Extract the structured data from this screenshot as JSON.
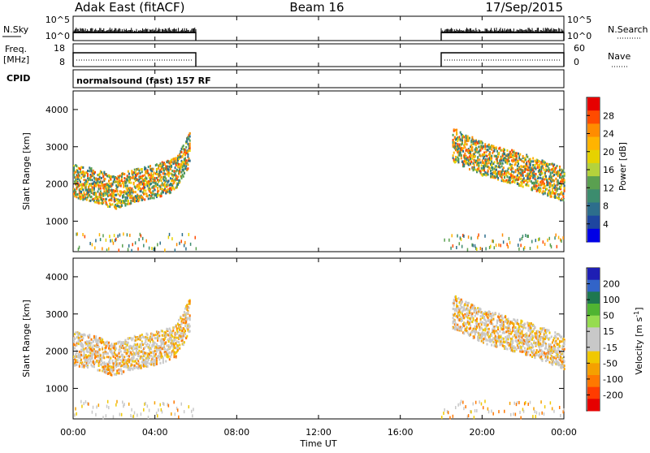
{
  "header": {
    "station": "Adak East (fitACF)",
    "beam": "Beam 16",
    "date": "17/Sep/2015"
  },
  "panels": {
    "nsky": {
      "label": "N.Sky",
      "right_label": "N.Search",
      "left_ticks": [
        "10^5",
        "10^0"
      ],
      "right_ticks": [
        "10^5",
        "10^0"
      ]
    },
    "freq": {
      "label_line1": "Freq.",
      "label_line2": "[MHz]",
      "left_ticks": [
        "18",
        "8"
      ],
      "right_label": "Nave",
      "right_ticks": [
        "60",
        "0"
      ]
    },
    "cpid": {
      "label": "CPID",
      "mode": "normalsound (fast) 157 RF"
    }
  },
  "axes": {
    "ylabel": "Slant Range [km]",
    "y_ticks": [
      "4000",
      "3000",
      "2000",
      "1000"
    ],
    "xlabel": "Time UT",
    "x_ticks": [
      "00:00",
      "04:00",
      "08:00",
      "12:00",
      "16:00",
      "20:00",
      "00:00"
    ]
  },
  "colorbars": {
    "power": {
      "label": "Power [dB]",
      "ticks": [
        "28",
        "24",
        "20",
        "16",
        "12",
        "8",
        "4"
      ],
      "colors": [
        "#e60000",
        "#ff4b00",
        "#ff8c00",
        "#ffb400",
        "#e6d200",
        "#b4d23c",
        "#5aa050",
        "#3c8c6e",
        "#2d6e8c",
        "#1e46a0",
        "#0000e6"
      ]
    },
    "velocity": {
      "label": "Velocity [m s",
      "label_sup": "-1",
      "label_end": "]",
      "ticks": [
        "200",
        "100",
        "50",
        "15",
        "-15",
        "-50",
        "-100",
        "-200"
      ],
      "colors": [
        "#1e1eb4",
        "#3264c8",
        "#1e7850",
        "#50b432",
        "#96dc50",
        "#c8c8c8",
        "#c8c8c8",
        "#f0c800",
        "#f5a000",
        "#ff7800",
        "#ff3c00",
        "#e60000"
      ]
    }
  },
  "chart_data": {
    "type": "heatmap",
    "x_range_hours": [
      0,
      24
    ],
    "y_range_km": [
      180,
      4500
    ],
    "data_intervals_ut": [
      [
        "00:00",
        "06:00"
      ],
      [
        "18:00",
        "24:00"
      ]
    ],
    "power_dB_range": [
      0,
      30
    ],
    "velocity_range": [
      -250,
      250
    ],
    "echo_band_slant_range_km": [
      {
        "time_h": 0.0,
        "range_km": 2100
      },
      {
        "time_h": 1.0,
        "range_km": 2000
      },
      {
        "time_h": 2.0,
        "range_km": 1800
      },
      {
        "time_h": 3.0,
        "range_km": 2000
      },
      {
        "time_h": 4.0,
        "range_km": 2100
      },
      {
        "time_h": 5.0,
        "range_km": 2300
      },
      {
        "time_h": 5.7,
        "range_km": 3000
      },
      {
        "time_h": 18.5,
        "range_km": 3100
      },
      {
        "time_h": 20.0,
        "range_km": 2700
      },
      {
        "time_h": 22.0,
        "range_km": 2400
      },
      {
        "time_h": 24.0,
        "range_km": 2000
      }
    ]
  }
}
